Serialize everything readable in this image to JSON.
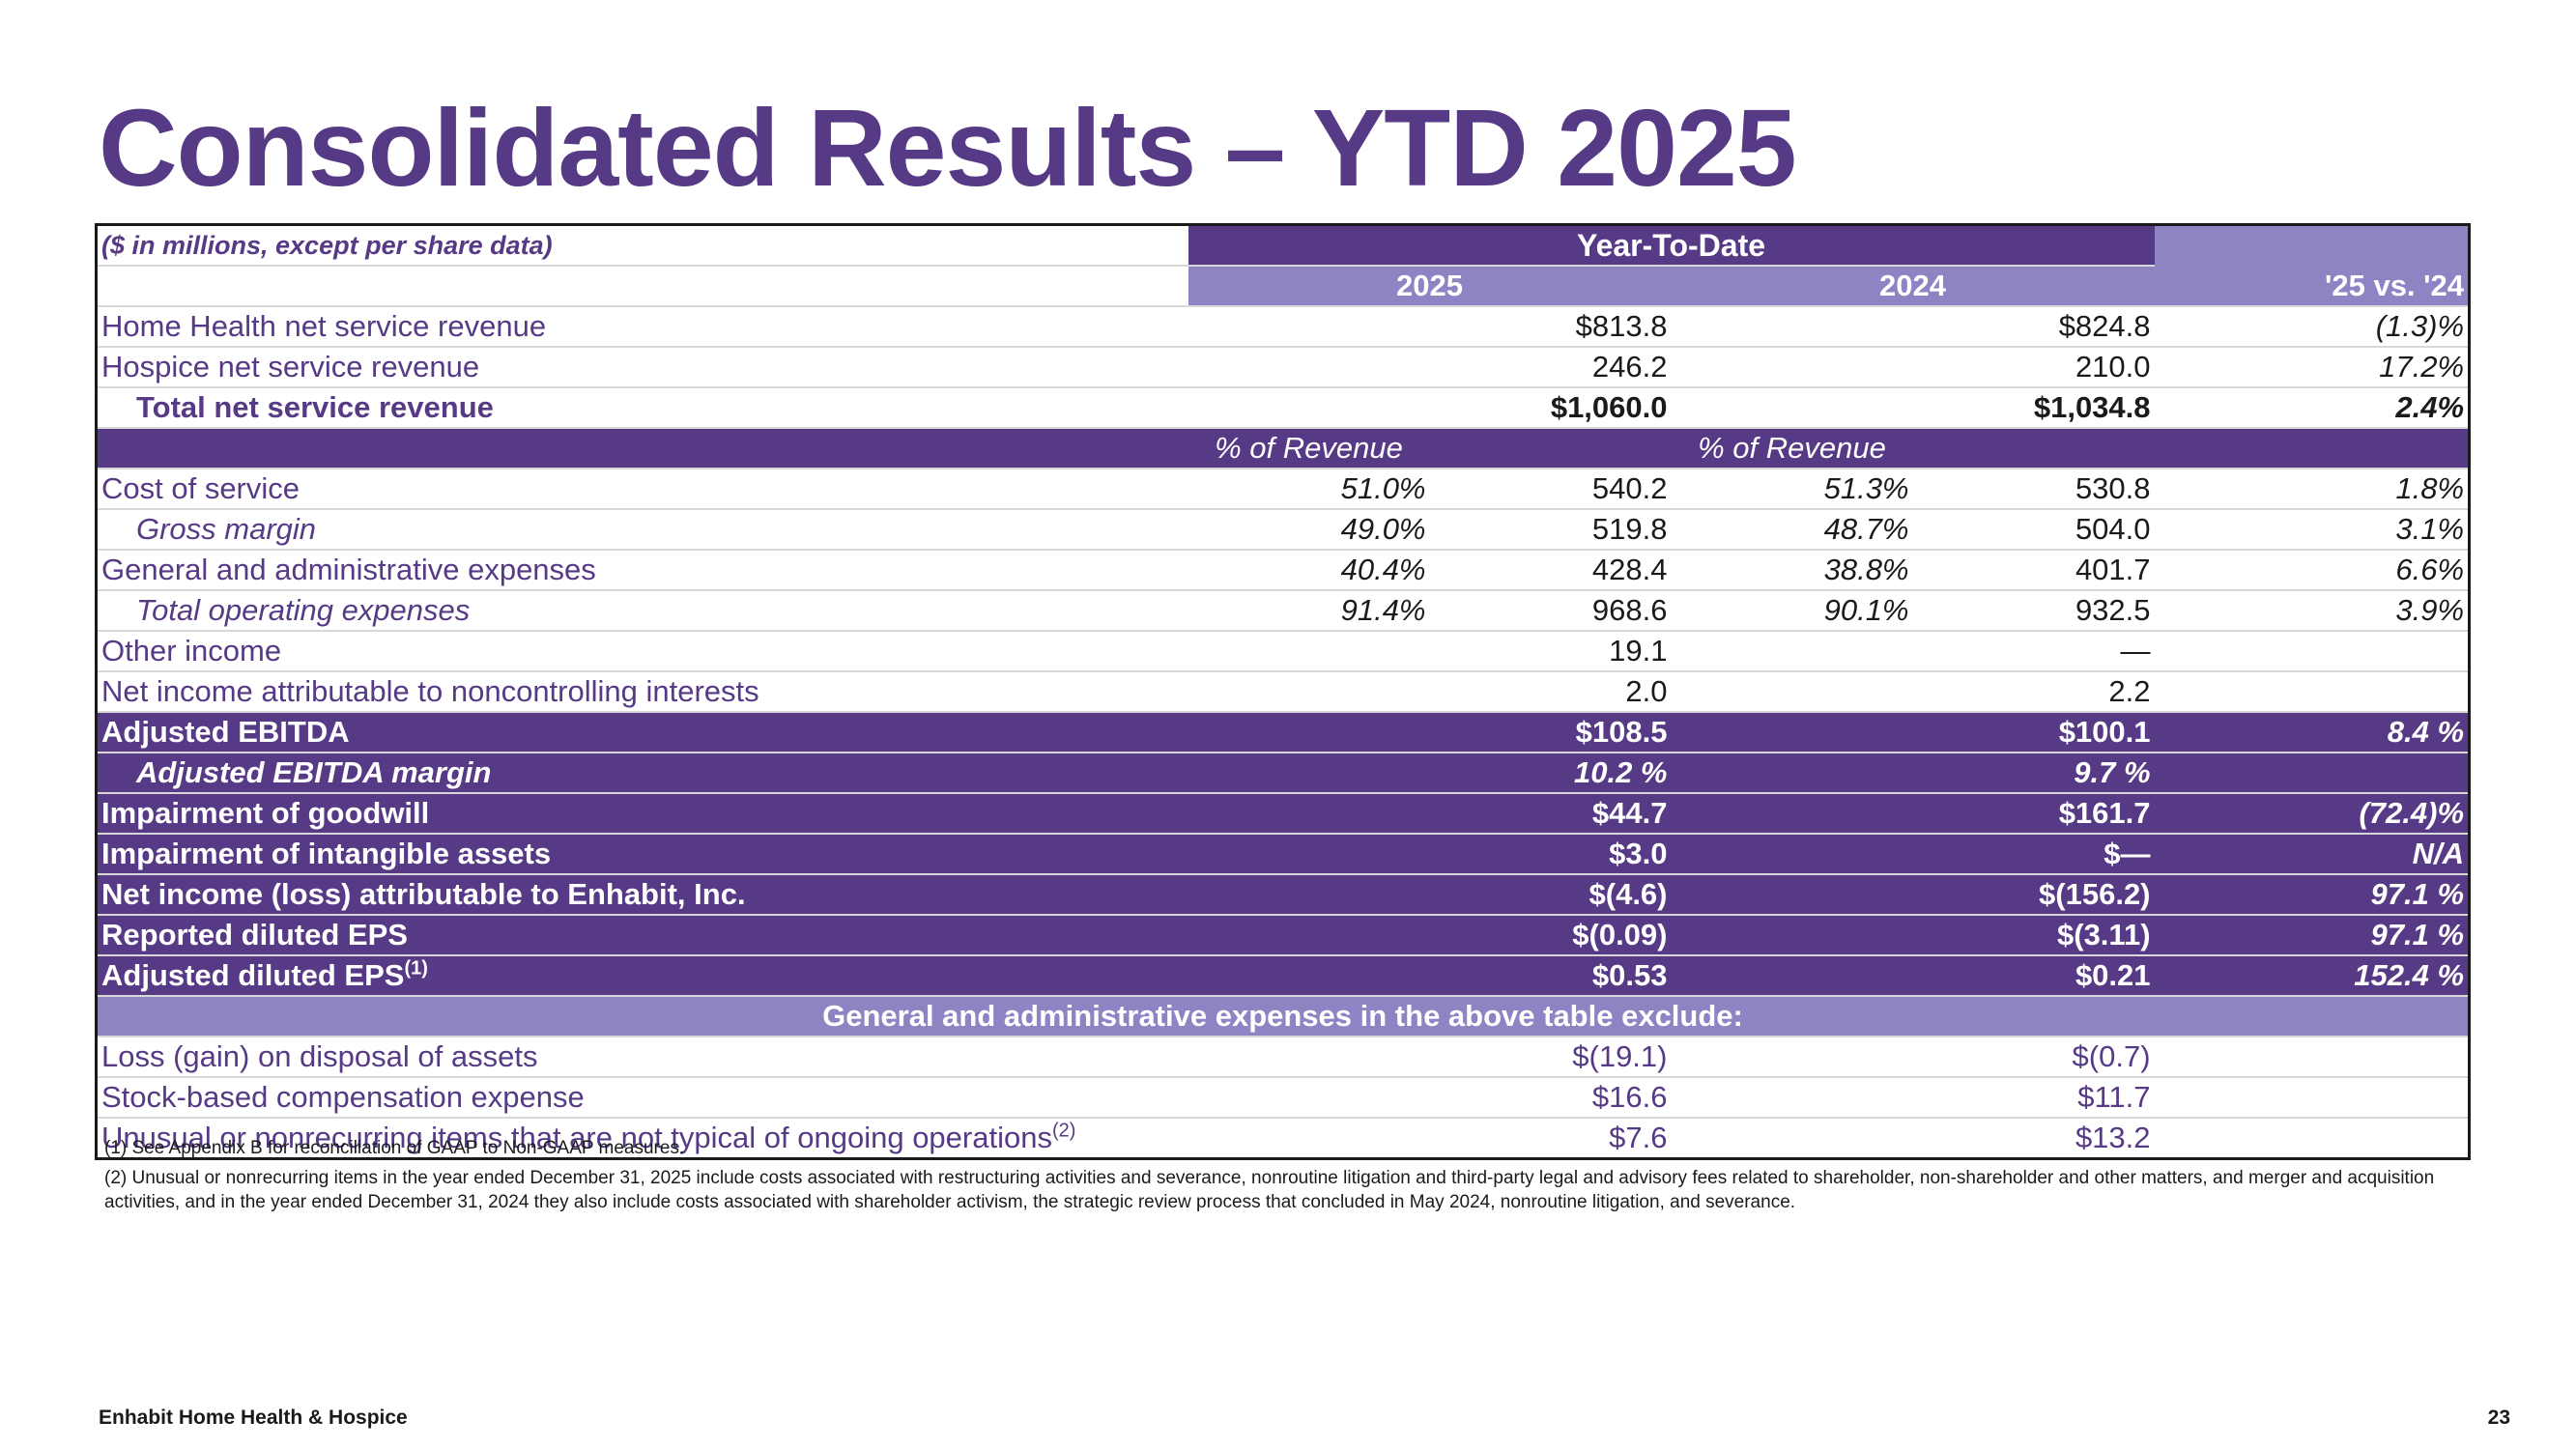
{
  "title": "Consolidated Results – YTD 2025",
  "table": {
    "unit_note": "($ in millions, except per share data)",
    "period_header": "Year-To-Date",
    "year_2025": "2025",
    "year_2024": "2024",
    "change_header": "'25 vs. '24",
    "pct_header_2025": "% of Revenue",
    "pct_header_2024": "% of Revenue",
    "rows": {
      "hh_revenue": {
        "label": "Home Health net service revenue",
        "v2025": "$813.8",
        "v2024": "$824.8",
        "chg": "(1.3)%"
      },
      "hospice_revenue": {
        "label": "Hospice net service revenue",
        "v2025": "246.2",
        "v2024": "210.0",
        "chg": "17.2%"
      },
      "total_revenue": {
        "label": "Total net service revenue",
        "v2025": "$1,060.0",
        "v2024": "$1,034.8",
        "chg": "2.4%"
      },
      "cost_of_service": {
        "label": "Cost of service",
        "p2025": "51.0%",
        "v2025": "540.2",
        "p2024": "51.3%",
        "v2024": "530.8",
        "chg": "1.8%"
      },
      "gross_margin": {
        "label": "Gross margin",
        "p2025": "49.0%",
        "v2025": "519.8",
        "p2024": "48.7%",
        "v2024": "504.0",
        "chg": "3.1%"
      },
      "ga_expenses": {
        "label": "General and administrative expenses",
        "p2025": "40.4%",
        "v2025": "428.4",
        "p2024": "38.8%",
        "v2024": "401.7",
        "chg": "6.6%"
      },
      "total_opex": {
        "label": "Total operating expenses",
        "p2025": "91.4%",
        "v2025": "968.6",
        "p2024": "90.1%",
        "v2024": "932.5",
        "chg": "3.9%"
      },
      "other_income": {
        "label": "Other income",
        "v2025": "19.1",
        "v2024": "—"
      },
      "nci": {
        "label": "Net income attributable to noncontrolling interests",
        "v2025": "2.0",
        "v2024": "2.2"
      },
      "adj_ebitda": {
        "label": "Adjusted EBITDA",
        "v2025": "$108.5",
        "v2024": "$100.1",
        "chg": "8.4 %"
      },
      "adj_ebitda_margin": {
        "label": "Adjusted EBITDA margin",
        "v2025": "10.2 %",
        "v2024": "9.7 %"
      },
      "goodwill": {
        "label": "Impairment of goodwill",
        "v2025": "$44.7",
        "v2024": "$161.7",
        "chg": "(72.4)%"
      },
      "intangibles": {
        "label": "Impairment of intangible assets",
        "v2025": "$3.0",
        "v2024": "$—",
        "chg": "N/A"
      },
      "net_income": {
        "label": "Net income (loss) attributable to Enhabit, Inc.",
        "v2025": "$(4.6)",
        "v2024": "$(156.2)",
        "chg": "97.1 %"
      },
      "reported_eps": {
        "label": "Reported diluted EPS",
        "v2025": "$(0.09)",
        "v2024": "$(3.11)",
        "chg": "97.1 %"
      },
      "adjusted_eps": {
        "label": "Adjusted diluted EPS",
        "sup": "(1)",
        "v2025": "$0.53",
        "v2024": "$0.21",
        "chg": "152.4 %"
      }
    },
    "exclude_header": "General and administrative expenses in the above table exclude:",
    "exclusions": {
      "disposal": {
        "label": "Loss (gain) on disposal of assets",
        "v2025": "$(19.1)",
        "v2024": "$(0.7)"
      },
      "stock_comp": {
        "label": "Stock-based compensation expense",
        "v2025": "$16.6",
        "v2024": "$11.7"
      },
      "unusual": {
        "label": "Unusual or nonrecurring items that are not typical of ongoing operations",
        "sup": "(2)",
        "v2025": "$7.6",
        "v2024": "$13.2"
      }
    }
  },
  "footnotes": {
    "note1": "(1) See Appendix B for reconciliation of GAAP to Non-GAAP measures.",
    "note2": "(2) Unusual or nonrecurring items in the year ended December 31, 2025 include costs associated with restructuring activities and severance, nonroutine litigation and third-party legal and advisory fees related to shareholder, non-shareholder and other matters, and merger and acquisition activities, and in the year ended December 31, 2024 they also include costs associated with shareholder activism, the strategic review process that concluded in May 2024, nonroutine litigation, and severance."
  },
  "footer": {
    "company": "Enhabit Home Health & Hospice",
    "page_number": "23"
  },
  "colors": {
    "brand_purple": "#573a85",
    "light_purple": "#8e84c4"
  }
}
